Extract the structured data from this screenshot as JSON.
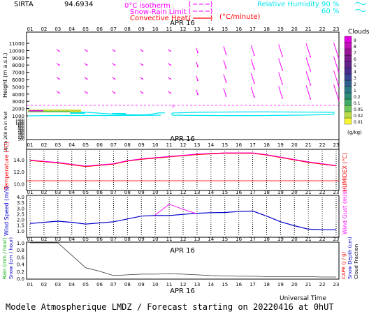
{
  "header": {
    "site": "SIRTA",
    "coords": "94.6934",
    "zero_iso_label": "0°C isotherm",
    "snow_rain_label": "Snow-Rain Limit",
    "convective_label": "Convective Heat.",
    "convective_unit": "(°C/minute)",
    "rh_label": "Relative Humidity",
    "rh_90": "90 %",
    "rh_60": "60 %"
  },
  "hours": [
    "01",
    "02",
    "03",
    "04",
    "05",
    "06",
    "07",
    "08",
    "09",
    "10",
    "11",
    "12",
    "13",
    "14",
    "15",
    "16",
    "17",
    "18",
    "19",
    "20",
    "21",
    "22",
    "23"
  ],
  "date_label": "APR 16",
  "footer": {
    "title": "Modele Atmospherique LMDZ / Forecast starting on 20220416 at 0hUT",
    "universal_time": "Universal Time"
  },
  "colors": {
    "magenta": "#ff00ff",
    "cyan": "#00e5ee",
    "red": "#ff0000",
    "blue": "#0000cc",
    "olive": "#9c9c00"
  },
  "chart_data": [
    {
      "type": "vector-field",
      "panel": "upper-air",
      "ylabel": "Height (m a.s.l.)",
      "ylabel2": "Up to 200 m in feet",
      "yticks": [
        "1000",
        "2000",
        "3000",
        "4000",
        "5000",
        "6000",
        "7000",
        "8000",
        "9000",
        "10000",
        "11000"
      ],
      "yticks_low": [
        "1400",
        "1200",
        "1000",
        "800",
        "600",
        "400",
        "200",
        "180",
        "160",
        "140",
        "120",
        "100"
      ],
      "zero_isotherm_m": 2600,
      "clouds": {
        "title": "Clouds",
        "unit": "(g/kg)",
        "levels": [
          "0.01",
          "0.02",
          "0.05",
          "0.1",
          "0.2",
          "1",
          "2",
          "3",
          "4",
          "5",
          "6",
          "7",
          "8",
          "9"
        ],
        "colors": [
          "#f5f536",
          "#b8dc46",
          "#6ec65a",
          "#3faa6a",
          "#2b8c78",
          "#2a7884",
          "#2e5f8c",
          "#3c4496",
          "#4c2c8e",
          "#612488",
          "#7a1c8a",
          "#9a1696",
          "#c010b8",
          "#e000e0"
        ]
      }
    },
    {
      "type": "line",
      "panel": "temperature",
      "ylabel": "Temperature (°C)",
      "ylabel2": "HUMIDEX (°C)",
      "yticks": [
        "10.0",
        "12.0",
        "14.0"
      ],
      "ylim": [
        9.0,
        15.5
      ],
      "series": [
        {
          "values": [
            13.9,
            13.7,
            13.5,
            13.2,
            12.9,
            13.1,
            13.3,
            13.8,
            14.1,
            14.3,
            14.5,
            14.7,
            14.9,
            15.0,
            15.1,
            15.1,
            15.1,
            14.8,
            14.4,
            14.0,
            13.6,
            13.3,
            13.0
          ]
        }
      ],
      "reference": 10.5
    },
    {
      "type": "line",
      "panel": "wind",
      "ylabel": "Wind Speed (m/s)",
      "ylabel2": "Wind Gust (m/s)",
      "yticks": [
        "1.0",
        "1.5",
        "2.0",
        "2.5",
        "3.0",
        "3.5",
        "4.0"
      ],
      "ylim": [
        0.5,
        4.0
      ],
      "series": [
        {
          "values": [
            1.65,
            1.75,
            1.85,
            1.75,
            1.6,
            1.7,
            1.8,
            2.05,
            2.3,
            2.35,
            2.35,
            2.45,
            2.55,
            2.6,
            2.62,
            2.7,
            2.75,
            2.3,
            1.8,
            1.45,
            1.15,
            1.1,
            1.1
          ]
        },
        {
          "values": [
            null,
            null,
            null,
            null,
            null,
            null,
            null,
            null,
            null,
            2.4,
            3.35,
            2.9,
            2.5
          ]
        }
      ]
    },
    {
      "type": "line",
      "panel": "precipitation",
      "ylabel": "Rain (mm / hour)",
      "ylabel_b": "Snow (cm / hour)",
      "ylabel2": "CAPE (J / g)",
      "ylabel2_b": "Snow Depth (cm)",
      "ylabel2_c": "Cloud Fraction",
      "yticks": [
        "0.0",
        "0.2",
        "0.4",
        "0.6",
        "0.8",
        "1.0"
      ],
      "ylim": [
        0,
        1
      ],
      "series": [
        {
          "values": [
            1.05,
            1.05,
            1.0,
            0.65,
            0.3,
            0.2,
            0.08,
            0.1,
            0.12,
            0.12,
            0.13,
            0.12,
            0.1,
            0.08,
            0.07,
            0.06,
            0.06,
            0.05,
            0.05,
            0.05,
            0.05,
            0.04,
            0.04
          ]
        }
      ]
    }
  ]
}
